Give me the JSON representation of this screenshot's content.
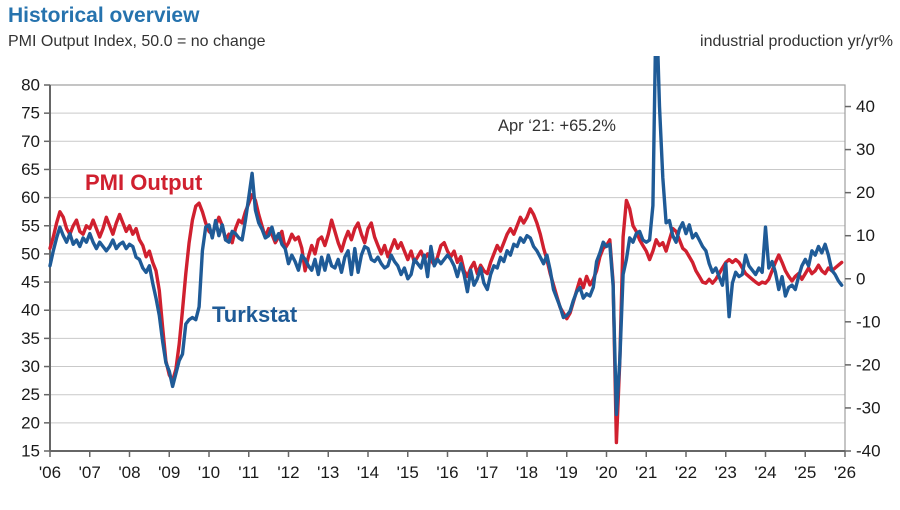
{
  "header": {
    "title": "Historical overview",
    "subtitle_left": "PMI Output Index, 50.0 = no change",
    "subtitle_right": "industrial production yr/yr%"
  },
  "annotation": {
    "text": "Apr ‘21: +65.2%"
  },
  "series_labels": {
    "pmi": "PMI Output",
    "turkstat": "Turkstat"
  },
  "colors": {
    "title_blue": "#2673ae",
    "pmi_red": "#d0202f",
    "turkstat_blue": "#1f5b97",
    "grid": "#c9c9c9",
    "frame": "#9e9e9e",
    "axis": "#666666",
    "text_dark": "#1a1a1a"
  },
  "chart_data": {
    "type": "line",
    "title": "Historical overview",
    "left_axis": {
      "label": "PMI Output Index, 50.0 = no change",
      "min": 15,
      "max": 80,
      "ticks": [
        80,
        75,
        70,
        65,
        60,
        55,
        50,
        45,
        40,
        35,
        30,
        25,
        20,
        15
      ]
    },
    "right_axis": {
      "label": "industrial production yr/yr%",
      "min": -40,
      "max": 45,
      "ticks": [
        40,
        30,
        20,
        10,
        0,
        -10,
        -20,
        -30,
        -40
      ]
    },
    "x_axis": {
      "start_year": 2006,
      "end_year": 2026,
      "frequency": "monthly",
      "tick_labels": [
        "'06",
        "'07",
        "'08",
        "'09",
        "'10",
        "'11",
        "'12",
        "'13",
        "'14",
        "'15",
        "'16",
        "'17",
        "'18",
        "'19",
        "'20",
        "'21",
        "'22",
        "'23",
        "'24",
        "'25",
        "'26"
      ]
    },
    "grid": "horizontal-only",
    "annotation": "Apr ‘21: +65.2%",
    "series": [
      {
        "name": "PMI Output",
        "axis": "left",
        "color": "#d0202f",
        "start_year": 2006,
        "values_by_year": [
          [
            51.0,
            53.0,
            55.5,
            57.5,
            56.5,
            54.5,
            53.5,
            55.0,
            56.0,
            54.0,
            53.5,
            55.0
          ],
          [
            54.5,
            56.0,
            54.5,
            53.0,
            54.5,
            56.5,
            55.0,
            53.5,
            55.5,
            57.0,
            55.5,
            54.0
          ],
          [
            55.0,
            53.5,
            54.5,
            52.5,
            51.5,
            49.5,
            50.5,
            48.5,
            47.0,
            43.5,
            37.0,
            31.0
          ],
          [
            28.5,
            27.5,
            29.5,
            34.0,
            40.0,
            46.5,
            52.0,
            56.0,
            58.5,
            59.0,
            57.5,
            55.5
          ],
          [
            54.0,
            53.5,
            55.0,
            56.5,
            55.0,
            52.5,
            53.5,
            52.0,
            54.5,
            56.0,
            55.5,
            57.5
          ],
          [
            59.0,
            60.5,
            59.5,
            57.0,
            55.0,
            53.0,
            54.5,
            53.5,
            52.0,
            53.0,
            54.0,
            51.0
          ],
          [
            52.0,
            53.5,
            52.5,
            53.0,
            51.0,
            47.0,
            49.5,
            51.5,
            50.0,
            52.5,
            53.0,
            51.5
          ],
          [
            53.5,
            56.0,
            54.0,
            52.0,
            50.5,
            52.5,
            54.0,
            52.5,
            54.5,
            55.5,
            53.5,
            52.0
          ],
          [
            54.5,
            55.5,
            53.0,
            51.5,
            50.0,
            51.5,
            49.5,
            51.0,
            52.5,
            51.0,
            52.0,
            50.5
          ],
          [
            49.0,
            50.5,
            48.5,
            49.5,
            50.5,
            49.0,
            50.0,
            49.0,
            48.0,
            49.5,
            51.5,
            52.0
          ],
          [
            50.5,
            49.5,
            50.5,
            48.5,
            49.5,
            47.0,
            46.0,
            47.5,
            48.5,
            46.5,
            48.0,
            47.0
          ],
          [
            46.5,
            48.5,
            50.0,
            51.5,
            50.5,
            52.0,
            53.5,
            54.5,
            53.5,
            55.0,
            56.5,
            55.5
          ],
          [
            56.5,
            58.0,
            57.0,
            55.5,
            53.5,
            51.0,
            49.0,
            46.5,
            44.5,
            42.5,
            40.5,
            39.5
          ],
          [
            38.5,
            39.5,
            41.5,
            43.5,
            45.5,
            44.0,
            46.0,
            44.5,
            45.5,
            47.0,
            49.5,
            51.0
          ],
          [
            51.5,
            52.5,
            45.0,
            16.5,
            31.0,
            53.0,
            59.5,
            58.0,
            55.0,
            54.0,
            52.5,
            51.5
          ],
          [
            50.5,
            49.0,
            50.5,
            52.5,
            51.5,
            52.0,
            50.5,
            52.5,
            54.5,
            54.0,
            52.5,
            51.0
          ],
          [
            50.5,
            49.5,
            48.5,
            47.0,
            46.0,
            45.0,
            44.8,
            45.5,
            44.8,
            45.5,
            46.5,
            47.5
          ],
          [
            48.5,
            49.0,
            48.5,
            49.0,
            48.5,
            47.5,
            46.5,
            46.0,
            45.5,
            45.0,
            44.6,
            45.0
          ],
          [
            44.8,
            45.5,
            47.0,
            48.5,
            49.8,
            48.5,
            47.0,
            46.0,
            45.2,
            46.0,
            46.5,
            45.5
          ],
          [
            46.5,
            47.5,
            46.5,
            47.0,
            48.0,
            47.0,
            46.5,
            47.5,
            47.0,
            47.5,
            48.0,
            48.5
          ]
        ]
      },
      {
        "name": "Turkstat",
        "axis": "right",
        "color": "#1f5b97",
        "start_year": 2006,
        "values_by_year": [
          [
            3.0,
            6.5,
            9.5,
            12.0,
            10.0,
            8.5,
            10.5,
            8.0,
            9.0,
            7.5,
            9.5,
            8.5
          ],
          [
            10.5,
            8.5,
            7.0,
            8.5,
            7.5,
            6.5,
            7.5,
            9.0,
            7.0,
            8.0,
            8.5,
            7.0
          ],
          [
            8.0,
            7.5,
            5.0,
            4.5,
            2.5,
            1.5,
            3.0,
            -1.0,
            -4.5,
            -8.5,
            -14.5,
            -19.5
          ],
          [
            -21.5,
            -25.0,
            -22.0,
            -19.0,
            -17.5,
            -10.5,
            -9.5,
            -9.0,
            -9.5,
            -6.5,
            6.5,
            12.0
          ],
          [
            12.5,
            9.5,
            13.5,
            10.0,
            12.5,
            9.0,
            8.5,
            11.0,
            10.5,
            9.5,
            9.0,
            13.5
          ],
          [
            19.0,
            24.5,
            16.0,
            13.0,
            11.5,
            9.5,
            10.0,
            12.0,
            9.0,
            10.5,
            8.0,
            7.0
          ],
          [
            3.5,
            5.5,
            4.0,
            2.0,
            5.5,
            4.5,
            3.0,
            2.0,
            4.5,
            1.0,
            5.0,
            2.0
          ],
          [
            5.5,
            3.0,
            2.5,
            4.5,
            1.5,
            5.0,
            6.5,
            1.0,
            7.0,
            1.5,
            5.5,
            7.5
          ],
          [
            7.0,
            4.5,
            4.0,
            5.0,
            3.5,
            2.5,
            3.0,
            5.5,
            4.0,
            3.0,
            1.0,
            2.5
          ],
          [
            0.0,
            1.0,
            4.5,
            3.5,
            2.5,
            5.5,
            0.5,
            7.5,
            3.0,
            4.5,
            3.5,
            4.5
          ],
          [
            5.5,
            4.5,
            3.0,
            0.5,
            3.5,
            1.0,
            -3.0,
            2.0,
            -1.5,
            0.0,
            2.5,
            -1.0
          ],
          [
            -2.5,
            1.0,
            3.0,
            2.5,
            5.0,
            4.0,
            6.5,
            5.5,
            8.0,
            7.5,
            9.5,
            8.5
          ],
          [
            10.0,
            9.5,
            7.5,
            6.5,
            5.0,
            3.5,
            5.5,
            2.0,
            -2.5,
            -4.5,
            -6.5,
            -9.0
          ],
          [
            -8.5,
            -7.5,
            -5.0,
            -3.0,
            -2.0,
            -4.5,
            -3.5,
            -4.0,
            -2.0,
            4.0,
            6.0,
            8.5
          ],
          [
            7.5,
            8.0,
            -1.5,
            -31.5,
            -19.0,
            1.0,
            4.5,
            9.5,
            8.5,
            10.5,
            11.0,
            9.0
          ],
          [
            8.5,
            9.0,
            17.0,
            65.2,
            40.0,
            23.5,
            13.0,
            13.5,
            10.0,
            8.5,
            11.5,
            13.0
          ],
          [
            10.5,
            12.5,
            9.5,
            10.5,
            9.0,
            7.5,
            6.5,
            3.5,
            1.5,
            2.5,
            0.5,
            -1.5
          ],
          [
            3.5,
            -8.8,
            -1.0,
            1.5,
            0.5,
            1.0,
            5.5,
            3.0,
            2.0,
            1.0,
            2.5,
            1.5
          ],
          [
            12.0,
            2.5,
            4.0,
            1.5,
            -2.5,
            0.5,
            -4.0,
            -2.0,
            -1.5,
            -2.5,
            0.5,
            3.0
          ],
          [
            4.5,
            3.0,
            6.5,
            5.5,
            7.5,
            6.0,
            8.0,
            5.5,
            2.0,
            1.0,
            -0.5,
            -1.5
          ]
        ]
      }
    ],
    "notable_points": [
      {
        "label": "Apr ‘21: +65.2%",
        "series": "Turkstat",
        "date": "2021-04",
        "value": 65.2
      }
    ]
  }
}
